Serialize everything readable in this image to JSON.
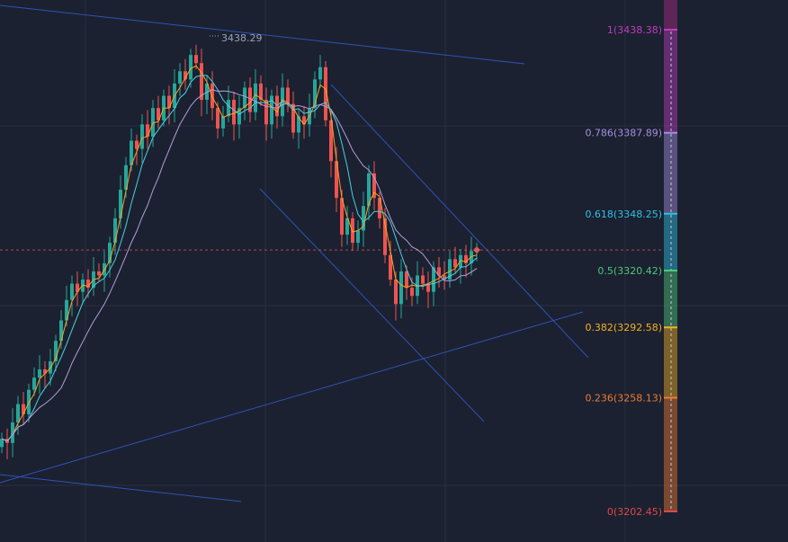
{
  "chart_data": {
    "type": "candlestick",
    "title": "",
    "xlabel": "",
    "ylabel": "",
    "ylim": [
      3195,
      3460
    ],
    "grid": true,
    "peak_label": "3438.29",
    "current_price": 3330.5,
    "colors": {
      "background": "#1b2130",
      "up": "#26a69a",
      "down": "#ef5350",
      "grid": "#283042",
      "trendline": "#2f52b8",
      "price_line": "#b04a4a",
      "ma_fast": "#f5a623",
      "ma_mid": "#4dd0e1",
      "ma_slow": "#b39ddb"
    },
    "moving_averages": [
      {
        "color": "#f5a623",
        "period": 3
      },
      {
        "color": "#4dd0e1",
        "period": 6
      },
      {
        "color": "#b39ddb",
        "period": 12
      }
    ],
    "closes": [
      3238,
      3236,
      3246,
      3255,
      3250,
      3262,
      3268,
      3272,
      3270,
      3276,
      3286,
      3296,
      3306,
      3314,
      3310,
      3316,
      3312,
      3320,
      3318,
      3324,
      3334,
      3346,
      3360,
      3372,
      3384,
      3380,
      3392,
      3386,
      3400,
      3394,
      3406,
      3400,
      3412,
      3418,
      3414,
      3426,
      3422,
      3404,
      3412,
      3400,
      3390,
      3396,
      3404,
      3392,
      3400,
      3410,
      3398,
      3412,
      3404,
      3392,
      3406,
      3396,
      3410,
      3402,
      3388,
      3396,
      3392,
      3400,
      3414,
      3420,
      3394,
      3374,
      3356,
      3338,
      3346,
      3334,
      3340,
      3352,
      3368,
      3356,
      3346,
      3328,
      3316,
      3304,
      3320,
      3312,
      3308,
      3318,
      3314,
      3310,
      3322,
      3318,
      3316,
      3326,
      3322,
      3328,
      3324,
      3330,
      3330
    ],
    "fibonacci": [
      {
        "level": "1",
        "price": 3438.38,
        "label": "1(3438.38)",
        "color": "#c03cc0"
      },
      {
        "level": "0.786",
        "price": 3387.89,
        "label": "0.786(3387.89)",
        "color": "#a48ee0"
      },
      {
        "level": "0.618",
        "price": 3348.25,
        "label": "0.618(3348.25)",
        "color": "#2ec0e6"
      },
      {
        "level": "0.5",
        "price": 3320.42,
        "label": "0.5(3320.42)",
        "color": "#4fc87a"
      },
      {
        "level": "0.382",
        "price": 3292.58,
        "label": "0.382(3292.58)",
        "color": "#f5b020"
      },
      {
        "level": "0.236",
        "price": 3258.13,
        "label": "0.236(3258.13)",
        "color": "#f07a30"
      },
      {
        "level": "0",
        "price": 3202.45,
        "label": "0(3202.45)",
        "color": "#e04848"
      }
    ]
  }
}
